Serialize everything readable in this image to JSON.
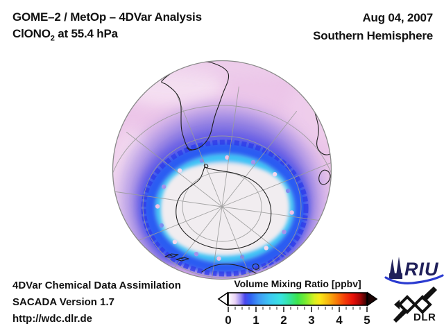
{
  "header": {
    "title_line1": "GOME–2 / MetOp – 4DVar Analysis",
    "compound": "ClONO",
    "compound_subscript": "2",
    "level_suffix": " at 55.4 hPa",
    "date": "Aug 04, 2007",
    "hemisphere": "Southern Hemisphere"
  },
  "footer": {
    "line1": "4DVar Chemical Data Assimilation",
    "line2": "SACADA Version 1.7",
    "url": "http://wdc.dlr.de"
  },
  "colorbar": {
    "title": "Volume Mixing Ratio [ppbv]",
    "tick_labels": [
      "0",
      "1",
      "2",
      "3",
      "4",
      "5"
    ],
    "range": [
      0,
      5
    ],
    "gradient_stops": [
      {
        "v": 0.0,
        "c": "#ffffff"
      },
      {
        "v": 0.25,
        "c": "#e9d2f6"
      },
      {
        "v": 0.45,
        "c": "#9a8cf2"
      },
      {
        "v": 0.6,
        "c": "#4a46ee"
      },
      {
        "v": 0.8,
        "c": "#2f62f2"
      },
      {
        "v": 1.1,
        "c": "#3f9af6"
      },
      {
        "v": 1.5,
        "c": "#3cc8f4"
      },
      {
        "v": 1.9,
        "c": "#38e4e0"
      },
      {
        "v": 2.2,
        "c": "#34e4a0"
      },
      {
        "v": 2.5,
        "c": "#3ce44c"
      },
      {
        "v": 2.8,
        "c": "#7cec30"
      },
      {
        "v": 3.1,
        "c": "#d8f020"
      },
      {
        "v": 3.3,
        "c": "#fae818"
      },
      {
        "v": 3.6,
        "c": "#f8b810"
      },
      {
        "v": 3.9,
        "c": "#f87c08"
      },
      {
        "v": 4.2,
        "c": "#f53c08"
      },
      {
        "v": 4.5,
        "c": "#e81008"
      },
      {
        "v": 4.75,
        "c": "#a80606"
      },
      {
        "v": 5.0,
        "c": "#2e0202"
      }
    ]
  },
  "logos": {
    "riu_label": "RIU",
    "dlr_label": "DLR"
  },
  "chart_data": {
    "type": "heatmap",
    "projection": "orthographic, South Pole centered",
    "title": "GOME–2 / MetOp – 4DVar Analysis — ClONO2 at 55.4 hPa",
    "date": "Aug 04, 2007",
    "region": "Southern Hemisphere",
    "colorbar_label": "Volume Mixing Ratio [ppbv]",
    "value_range_ppbv": [
      0,
      5
    ],
    "tick_values": [
      0,
      1,
      2,
      3,
      4,
      5
    ],
    "features": [
      {
        "name": "polar vortex interior over Antarctica",
        "approx_value_ppbv": 0.05,
        "color": "#f1edf0"
      },
      {
        "name": "vortex edge speckled cells",
        "approx_value_ppbv": 0.3,
        "color": "#efc3e7"
      },
      {
        "name": "inner collar ring light cyan",
        "approx_value_ppbv": 1.6,
        "color": "#86dcfa"
      },
      {
        "name": "collar ring cyan",
        "approx_value_ppbv": 1.9,
        "color": "#3cc2f6"
      },
      {
        "name": "collar outer ring blue",
        "approx_value_ppbv": 0.9,
        "color": "#2b5bf2"
      },
      {
        "name": "midlatitude band violet",
        "approx_value_ppbv": 0.6,
        "color": "#8375e2"
      },
      {
        "name": "outer subtropics lavender-pink",
        "approx_value_ppbv": 0.35,
        "color": "#ecc6e9"
      },
      {
        "name": "pale patches near limb",
        "approx_value_ppbv": 0.15,
        "color": "#f6e3f3"
      }
    ],
    "map_features": [
      "South America",
      "Antarctica",
      "southern Africa",
      "Madagascar",
      "southern Australia",
      "New Zealand"
    ],
    "legend_position": "bottom-center",
    "grid": "gray graticule, meridians every 30 deg"
  }
}
